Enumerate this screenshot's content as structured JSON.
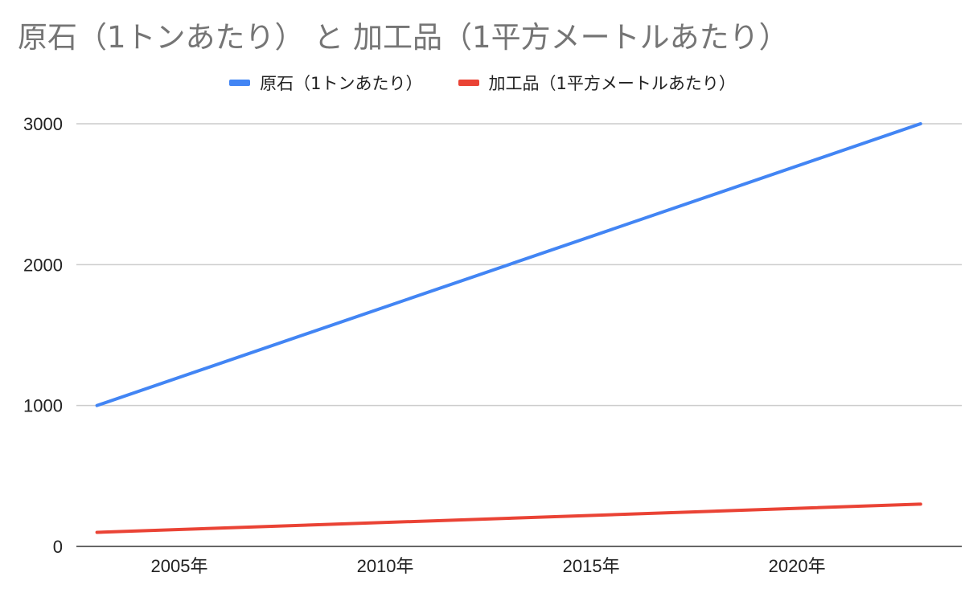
{
  "chart_data": {
    "type": "line",
    "title": "原石（1トンあたり） と 加工品（1平方メートルあたり）",
    "x_ticks": [
      "2005年",
      "2010年",
      "2015年",
      "2020年"
    ],
    "y_ticks": [
      "0",
      "1000",
      "2000",
      "3000"
    ],
    "xlim": [
      2002.5,
      2024
    ],
    "ylim": [
      0,
      3000
    ],
    "grid": true,
    "legend_position": "top-center",
    "series": [
      {
        "name": "原石（1トンあたり）",
        "color": "#4285f4",
        "points": [
          {
            "x": 2003,
            "y": 1000
          },
          {
            "x": 2023,
            "y": 3000
          }
        ]
      },
      {
        "name": "加工品（1平方メートルあたり）",
        "color": "#ea4335",
        "points": [
          {
            "x": 2003,
            "y": 100
          },
          {
            "x": 2023,
            "y": 300
          }
        ]
      }
    ]
  }
}
